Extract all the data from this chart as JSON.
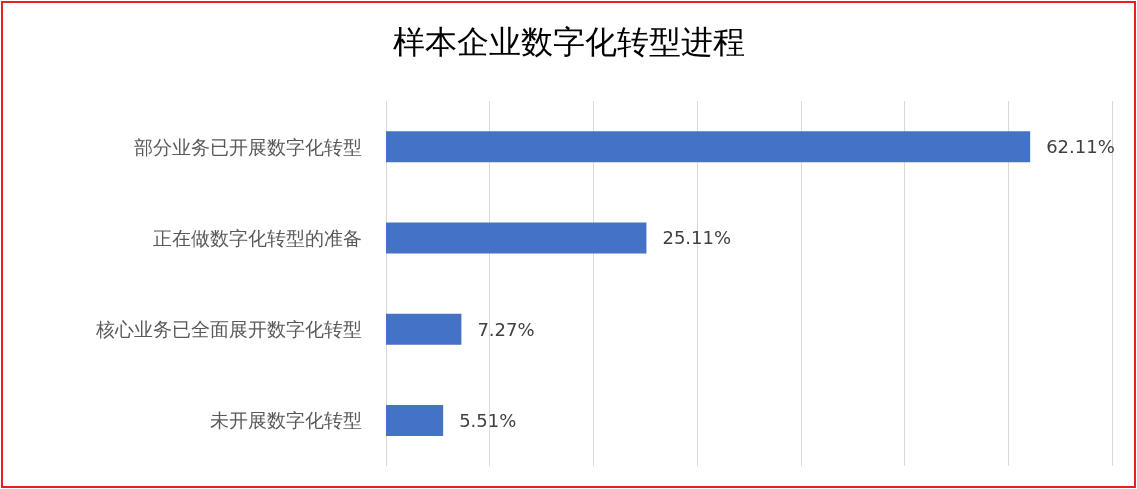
{
  "chart_data": {
    "type": "bar",
    "orientation": "horizontal",
    "title": "样本企业数字化转型进程",
    "categories": [
      "部分业务已开展数字化转型",
      "正在做数字化转型的准备",
      "核心业务已全面展开数字化转型",
      "未开展数字化转型"
    ],
    "values": [
      62.11,
      25.11,
      7.27,
      5.51
    ],
    "value_labels": [
      "62.11%",
      "25.11%",
      "7.27%",
      "5.51%"
    ],
    "color": "#4472c4",
    "xlim": [
      0,
      70
    ],
    "xticks": [
      {
        "value": 0,
        "label": null
      },
      {
        "value": 10,
        "label": null
      },
      {
        "value": 20,
        "label": null
      },
      {
        "value": 30,
        "label": null
      },
      {
        "value": 40,
        "label": null
      },
      {
        "value": 50,
        "label": null
      },
      {
        "value": 60,
        "label": null
      },
      {
        "value": 70,
        "label": null
      }
    ],
    "grid": "x",
    "tick_labels": "y"
  }
}
